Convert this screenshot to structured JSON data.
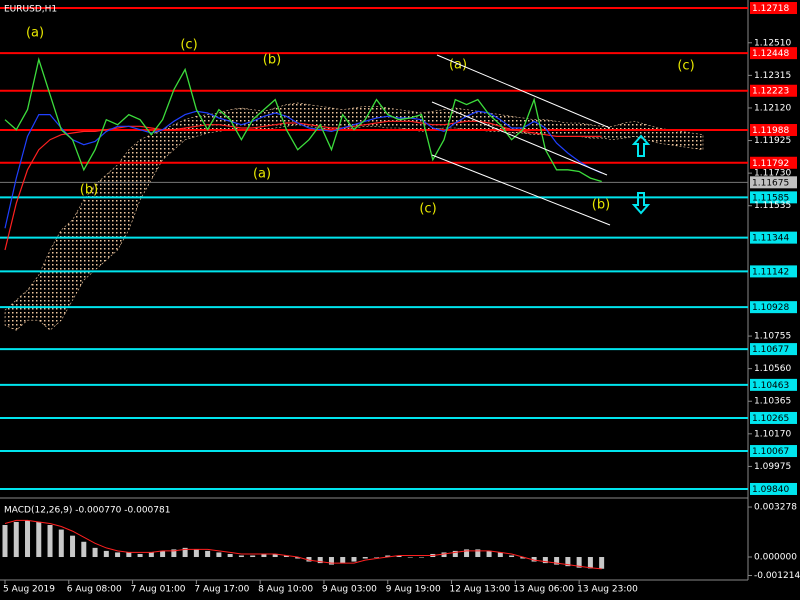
{
  "chart_data": [
    {
      "type": "line",
      "title": "EURUSD,H1",
      "x": [
        0,
        3,
        6,
        9,
        12,
        15,
        18,
        21,
        24,
        27,
        30,
        33,
        36,
        39,
        42,
        45,
        48,
        51,
        54,
        57,
        60,
        63,
        66,
        69,
        72,
        75,
        78,
        81,
        84,
        87,
        90,
        93,
        96,
        99,
        102,
        105,
        108,
        111,
        114,
        117,
        120,
        123,
        126,
        129,
        132,
        135,
        138,
        141,
        144,
        147,
        150,
        153,
        156,
        159,
        162,
        165,
        168,
        171,
        174,
        177,
        180,
        183,
        186
      ],
      "xlim": [
        0,
        198
      ],
      "xticks": [
        {
          "value": 0,
          "label": "5 Aug 2019"
        },
        {
          "value": 17,
          "label": "6 Aug 08:00"
        },
        {
          "value": 34,
          "label": "7 Aug 01:00"
        },
        {
          "value": 51,
          "label": "7 Aug 17:00"
        },
        {
          "value": 68,
          "label": "8 Aug 10:00"
        },
        {
          "value": 85,
          "label": "9 Aug 03:00"
        },
        {
          "value": 102,
          "label": "9 Aug 19:00"
        },
        {
          "value": 119,
          "label": "12 Aug 13:00"
        },
        {
          "value": 136,
          "label": "13 Aug 06:00"
        },
        {
          "value": 153,
          "label": "13 Aug 23:00"
        }
      ],
      "ylim": [
        1.09792,
        1.12766
      ],
      "yticks": [
        {
          "value": 1.1251,
          "label": "1.12510"
        },
        1.12315,
        {
          "value": 1.1212,
          "label": "1.12120"
        },
        1.11925,
        {
          "value": 1.1173,
          "label": "1.11730"
        },
        1.11535,
        1.10755,
        {
          "value": 1.1056,
          "label": "1.10560"
        },
        1.10365,
        {
          "value": 1.1017,
          "label": "1.10170"
        },
        1.09975
      ],
      "levels": [
        {
          "value": 1.12718,
          "color": "#ff0000"
        },
        {
          "value": 1.12448,
          "color": "#ff0000"
        },
        {
          "value": 1.12223,
          "color": "#ff0000"
        },
        {
          "value": 1.11988,
          "color": "#ff0000"
        },
        {
          "value": 1.11792,
          "color": "#ff0000"
        },
        {
          "value": 1.11585,
          "color": "#00e5ee"
        },
        {
          "value": 1.11344,
          "color": "#00e5ee"
        },
        {
          "value": 1.11142,
          "color": "#00e5ee"
        },
        {
          "value": 1.10928,
          "color": "#00e5ee"
        },
        {
          "value": 1.10677,
          "color": "#00e5ee"
        },
        {
          "value": 1.10463,
          "color": "#00e5ee"
        },
        {
          "value": 1.10265,
          "color": "#00e5ee"
        },
        {
          "value": 1.10067,
          "color": "#00e5ee"
        },
        {
          "value": 1.0984,
          "label": "1.09840",
          "color": "#00e5ee"
        }
      ],
      "current_price": 1.11675,
      "annotations": [
        "(a)",
        "(b)",
        "(c)",
        "(b)",
        "(a)",
        "(a)",
        "(c)",
        "(b)",
        "(c)"
      ],
      "cloud": {
        "color": "#f0c8a0",
        "upper": [
          1.1091,
          1.1097,
          1.1103,
          1.1112,
          1.1127,
          1.1139,
          1.1145,
          1.1157,
          1.1166,
          1.1172,
          1.1178,
          1.1187,
          1.1193,
          1.1196,
          1.1199,
          1.1202,
          1.1205,
          1.1207,
          1.1208,
          1.1209,
          1.1211,
          1.1212,
          1.1211,
          1.121,
          1.1212,
          1.1214,
          1.1215,
          1.1214,
          1.1213,
          1.1212,
          1.1211,
          1.1212,
          1.1213,
          1.1213,
          1.1212,
          1.1211,
          1.121,
          1.1209,
          1.121,
          1.1211,
          1.1212,
          1.1211,
          1.121,
          1.1209,
          1.1208,
          1.1207,
          1.1206,
          1.1205,
          1.1205,
          1.1204,
          1.1203,
          1.1203,
          1.1202,
          1.1201,
          1.1201,
          1.1203,
          1.1204,
          1.1202,
          1.12,
          1.1199,
          1.1198,
          1.1197,
          1.1196
        ],
        "lower": [
          1.1082,
          1.1079,
          1.1085,
          1.1085,
          1.1079,
          1.1085,
          1.1097,
          1.1109,
          1.1115,
          1.1121,
          1.1127,
          1.1139,
          1.1157,
          1.1169,
          1.1181,
          1.1187,
          1.1193,
          1.1195,
          1.1197,
          1.1198,
          1.1199,
          1.12,
          1.12,
          1.1199,
          1.12,
          1.1201,
          1.1202,
          1.1201,
          1.12,
          1.1199,
          1.1199,
          1.12,
          1.1201,
          1.1201,
          1.12,
          1.12,
          1.1199,
          1.1198,
          1.1199,
          1.12,
          1.12,
          1.1199,
          1.1199,
          1.1198,
          1.1198,
          1.1197,
          1.1197,
          1.1196,
          1.1196,
          1.1195,
          1.1195,
          1.1195,
          1.1194,
          1.1194,
          1.1193,
          1.1194,
          1.1195,
          1.1193,
          1.1191,
          1.119,
          1.1189,
          1.1188,
          1.1187
        ]
      },
      "series": [
        {
          "color": "#ff2020",
          "values": [
            1.1127,
            1.1155,
            1.1175,
            1.1187,
            1.1193,
            1.1196,
            1.1197,
            1.1198,
            1.1198,
            1.1199,
            1.12,
            1.1201,
            1.1201,
            1.12,
            1.1199,
            1.1199,
            1.12,
            1.1201,
            1.1202,
            1.1202,
            1.1201,
            1.12,
            1.12,
            1.1201,
            1.1202,
            1.1203,
            1.1203,
            1.1202,
            1.1201,
            1.12,
            1.12,
            1.1201,
            1.1202,
            1.1203,
            1.1204,
            1.1204,
            1.1204,
            1.1203,
            1.1202,
            1.1202,
            1.1203,
            1.1204,
            1.1204,
            1.1203,
            1.1201,
            1.1199,
            1.1198,
            1.1197,
            1.1196,
            1.1195,
            1.1195,
            1.1195,
            1.1195,
            1.1195,
            null,
            null,
            null,
            null,
            null,
            null,
            null,
            null,
            null
          ]
        },
        {
          "color": "#2040ff",
          "values": [
            1.114,
            1.117,
            1.1195,
            1.1208,
            1.1208,
            1.12,
            1.1193,
            1.119,
            1.1192,
            1.1198,
            1.1201,
            1.1201,
            1.1199,
            1.1197,
            1.1199,
            1.1204,
            1.1208,
            1.121,
            1.1209,
            1.1206,
            1.1204,
            1.1202,
            1.1204,
            1.1207,
            1.1209,
            1.1207,
            1.1203,
            1.12,
            1.1199,
            1.1198,
            1.12,
            1.1202,
            1.1204,
            1.1206,
            1.1207,
            1.1206,
            1.1206,
            1.1205,
            1.12,
            1.1198,
            1.1203,
            1.1207,
            1.121,
            1.1209,
            1.1205,
            1.12,
            1.12,
            1.1204,
            1.12,
            1.1191,
            1.1185,
            1.118,
            1.1176,
            1.1173,
            null,
            null,
            null,
            null,
            null,
            null,
            null,
            null,
            null
          ]
        },
        {
          "color": "#3cdc3c",
          "values": [
            1.1205,
            1.1199,
            1.1211,
            1.1241,
            1.122,
            1.1199,
            1.1193,
            1.1175,
            1.1187,
            1.1205,
            1.1202,
            1.1208,
            1.1205,
            1.1196,
            1.1205,
            1.1223,
            1.1235,
            1.1211,
            1.1199,
            1.1211,
            1.1205,
            1.1193,
            1.1205,
            1.1211,
            1.1217,
            1.1199,
            1.1187,
            1.1193,
            1.1202,
            1.1187,
            1.1208,
            1.1199,
            1.1205,
            1.1217,
            1.1208,
            1.1205,
            1.1206,
            1.1208,
            1.1181,
            1.1193,
            1.1217,
            1.1214,
            1.1217,
            1.1208,
            1.1202,
            1.1193,
            1.1199,
            1.1217,
            1.1187,
            1.1175,
            1.1175,
            1.1174,
            1.117,
            1.1168,
            null,
            null,
            null,
            null,
            null,
            null,
            null,
            null,
            null
          ]
        }
      ]
    },
    {
      "type": "macd",
      "title": "MACD(12,26,9) -0.000770 -0.000781",
      "ylim": [
        -0.001377,
        0.00374
      ],
      "yticks": [
        0.003278,
        {
          "value": 0,
          "label": "0.000000"
        },
        -0.001214
      ],
      "histogram": {
        "color": "#c8c8c8",
        "values": [
          0.0021,
          0.0023,
          0.0024,
          0.0023,
          0.0021,
          0.0018,
          0.0014,
          0.001,
          0.0006,
          0.0004,
          0.0003,
          0.0003,
          0.0002,
          0.0003,
          0.0004,
          0.0005,
          0.0006,
          0.0005,
          0.0004,
          0.0003,
          0.0002,
          0.0001,
          0.0001,
          0.0002,
          0.0002,
          0.0001,
          -0.0001,
          -0.0003,
          -0.0004,
          -0.0005,
          -0.0004,
          -0.0003,
          -0.0001,
          0,
          0.0001,
          0.0001,
          0,
          0,
          0.0002,
          0.0003,
          0.0004,
          0.0005,
          0.0005,
          0.0004,
          0.0003,
          0.0001,
          -0.0001,
          -0.0003,
          -0.0004,
          -0.0005,
          -0.0006,
          -0.0007,
          -0.00075,
          -0.00077,
          null,
          null,
          null,
          null,
          null,
          null,
          null,
          null,
          null
        ]
      },
      "signal": {
        "color": "#ff2020",
        "values": [
          0.0022,
          0.0024,
          0.0024,
          0.0023,
          0.0022,
          0.002,
          0.0017,
          0.0013,
          0.0009,
          0.0006,
          0.0004,
          0.0003,
          0.0003,
          0.0003,
          0.0004,
          0.0004,
          0.0005,
          0.0005,
          0.0005,
          0.0004,
          0.0003,
          0.0002,
          0.0002,
          0.0002,
          0.0002,
          0.0001,
          0,
          -0.0002,
          -0.0003,
          -0.0004,
          -0.0004,
          -0.0004,
          -0.0002,
          -0.0001,
          0,
          0.0001,
          0.0001,
          0.0001,
          0.0001,
          0.0002,
          0.0003,
          0.0004,
          0.0004,
          0.0004,
          0.0003,
          0.0002,
          0,
          -0.0002,
          -0.0003,
          -0.0004,
          -0.0005,
          -0.0006,
          -0.0007,
          -0.000781,
          null,
          null,
          null,
          null,
          null,
          null,
          null,
          null,
          null
        ]
      }
    }
  ]
}
